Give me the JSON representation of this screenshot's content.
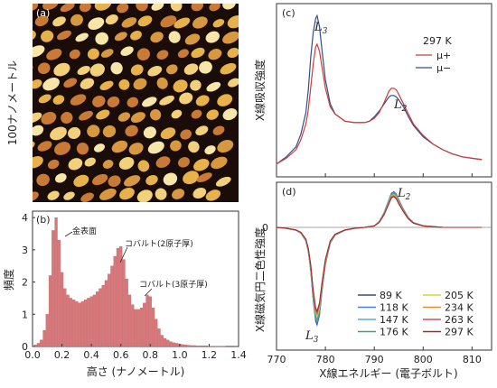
{
  "chart_data": [
    {
      "type": "image",
      "panel_label": "(a)",
      "side_label": "100ナノメートル"
    },
    {
      "type": "bar",
      "panel_label": "(b)",
      "ylabel": "頻度",
      "xlabel": "高さ (ナノメートル)",
      "xlim": [
        0,
        1.4
      ],
      "ylim": [
        0,
        4.2
      ],
      "xticks": [
        "0.0",
        "0.2",
        "0.4",
        "0.6",
        "0.8",
        "1.0",
        "1.2",
        "1.4"
      ],
      "yticks": [
        "0",
        "1",
        "2",
        "3",
        "4"
      ],
      "annotations": [
        "金表面",
        "コバルト(2原子厚)",
        "コバルト(3原子厚)"
      ],
      "bar_color": "#d9787a",
      "bins_x": [
        0.02,
        0.04,
        0.06,
        0.08,
        0.1,
        0.12,
        0.14,
        0.16,
        0.18,
        0.2,
        0.22,
        0.24,
        0.26,
        0.28,
        0.3,
        0.32,
        0.34,
        0.36,
        0.38,
        0.4,
        0.42,
        0.44,
        0.46,
        0.48,
        0.5,
        0.52,
        0.54,
        0.56,
        0.58,
        0.6,
        0.62,
        0.64,
        0.66,
        0.68,
        0.7,
        0.72,
        0.74,
        0.76,
        0.78,
        0.8,
        0.82,
        0.84,
        0.86,
        0.88,
        0.9,
        0.92,
        0.94,
        0.96,
        0.98,
        1.0,
        1.02,
        1.04,
        1.06,
        1.08,
        1.1,
        1.12,
        1.14,
        1.16,
        1.18,
        1.2,
        1.22,
        1.24,
        1.26,
        1.28,
        1.3
      ],
      "bins_y": [
        0.05,
        0.1,
        0.2,
        0.5,
        1.0,
        2.2,
        3.6,
        4.0,
        3.3,
        2.3,
        1.8,
        1.6,
        1.5,
        1.45,
        1.4,
        1.35,
        1.4,
        1.45,
        1.5,
        1.55,
        1.6,
        1.7,
        1.8,
        1.9,
        2.05,
        2.25,
        2.5,
        2.8,
        3.05,
        3.1,
        2.7,
        2.1,
        1.6,
        1.3,
        1.15,
        1.15,
        1.2,
        1.35,
        1.6,
        1.55,
        1.2,
        0.85,
        0.55,
        0.35,
        0.25,
        0.2,
        0.15,
        0.12,
        0.1,
        0.08,
        0.06,
        0.05,
        0.04,
        0.03,
        0.03,
        0.02,
        0.02,
        0.02,
        0.02,
        0.01,
        0.01,
        0.01,
        0.01,
        0.01,
        0.01
      ]
    },
    {
      "type": "line",
      "panel_label": "(c)",
      "ylabel": "X線吸収強度",
      "legend_title": "297 K",
      "peak_labels": [
        "L3",
        "L2"
      ],
      "xlim": [
        770,
        814
      ],
      "series": [
        {
          "name": "μ+",
          "color": "#d03a3a",
          "x": [
            770,
            772,
            774,
            775,
            776,
            776.5,
            777,
            777.5,
            778,
            778.3,
            778.8,
            779.3,
            780,
            781,
            782,
            784,
            786,
            788,
            789,
            790,
            791,
            792,
            793,
            793.5,
            794,
            794.5,
            795,
            796,
            797,
            798,
            800,
            802,
            804,
            806,
            808,
            810,
            812
          ],
          "y": [
            0.04,
            0.08,
            0.14,
            0.21,
            0.32,
            0.42,
            0.58,
            0.74,
            0.86,
            0.88,
            0.83,
            0.72,
            0.57,
            0.44,
            0.39,
            0.34,
            0.33,
            0.33,
            0.34,
            0.36,
            0.4,
            0.47,
            0.55,
            0.57,
            0.57,
            0.56,
            0.53,
            0.46,
            0.39,
            0.32,
            0.24,
            0.18,
            0.14,
            0.11,
            0.09,
            0.08,
            0.07
          ]
        },
        {
          "name": "μ−",
          "color": "#2f4f8a",
          "x": [
            770,
            772,
            774,
            775,
            776,
            776.5,
            777,
            777.5,
            778,
            778.3,
            778.8,
            779.3,
            780,
            781,
            782,
            784,
            786,
            788,
            789,
            790,
            791,
            792,
            793,
            793.5,
            794,
            794.5,
            795,
            796,
            797,
            798,
            800,
            802,
            804,
            806,
            808,
            810,
            812
          ],
          "y": [
            0.04,
            0.09,
            0.16,
            0.25,
            0.4,
            0.56,
            0.79,
            0.96,
            1.06,
            1.08,
            1.0,
            0.84,
            0.63,
            0.46,
            0.39,
            0.34,
            0.33,
            0.33,
            0.34,
            0.37,
            0.41,
            0.46,
            0.51,
            0.52,
            0.52,
            0.51,
            0.49,
            0.44,
            0.37,
            0.31,
            0.23,
            0.18,
            0.14,
            0.11,
            0.09,
            0.08,
            0.07
          ]
        }
      ]
    },
    {
      "type": "line",
      "panel_label": "(d)",
      "ylabel": "X線磁気円二色性強度",
      "xlabel": "X線エネルギー (電子ボルト)",
      "zero_label": "0",
      "peak_labels": [
        "L2",
        "L3"
      ],
      "xlim": [
        770,
        814
      ],
      "xticks": [
        "770",
        "780",
        "790",
        "800",
        "810"
      ],
      "x": [
        770,
        772,
        774,
        775,
        776,
        776.5,
        777,
        777.5,
        778,
        778.3,
        778.8,
        779.3,
        780,
        781,
        782,
        784,
        786,
        788,
        790,
        791,
        792,
        793,
        793.5,
        794,
        794.5,
        795,
        796,
        797,
        798,
        800,
        802,
        804,
        806,
        808,
        810,
        812
      ],
      "shape": [
        0,
        -0.01,
        -0.03,
        -0.06,
        -0.14,
        -0.25,
        -0.45,
        -0.75,
        -0.96,
        -1.0,
        -0.9,
        -0.66,
        -0.38,
        -0.16,
        -0.08,
        -0.03,
        -0.01,
        0,
        0.02,
        0.07,
        0.18,
        0.34,
        0.42,
        0.44,
        0.41,
        0.34,
        0.22,
        0.12,
        0.06,
        0.02,
        0.01,
        0,
        0,
        0,
        0,
        0
      ],
      "series": [
        {
          "name": "89 K",
          "color": "#3a4a7a",
          "scale": 1.0
        },
        {
          "name": "118 K",
          "color": "#4a7fd0",
          "scale": 0.98
        },
        {
          "name": "147 K",
          "color": "#5aa6e0",
          "scale": 0.96
        },
        {
          "name": "176 K",
          "color": "#33a86a",
          "scale": 0.94
        },
        {
          "name": "205 K",
          "color": "#d8d040",
          "scale": 0.92
        },
        {
          "name": "234 K",
          "color": "#e0902f",
          "scale": 0.9
        },
        {
          "name": "263 K",
          "color": "#c9506a",
          "scale": 0.88
        },
        {
          "name": "297 K",
          "color": "#a02c2c",
          "scale": 0.86
        }
      ]
    }
  ]
}
